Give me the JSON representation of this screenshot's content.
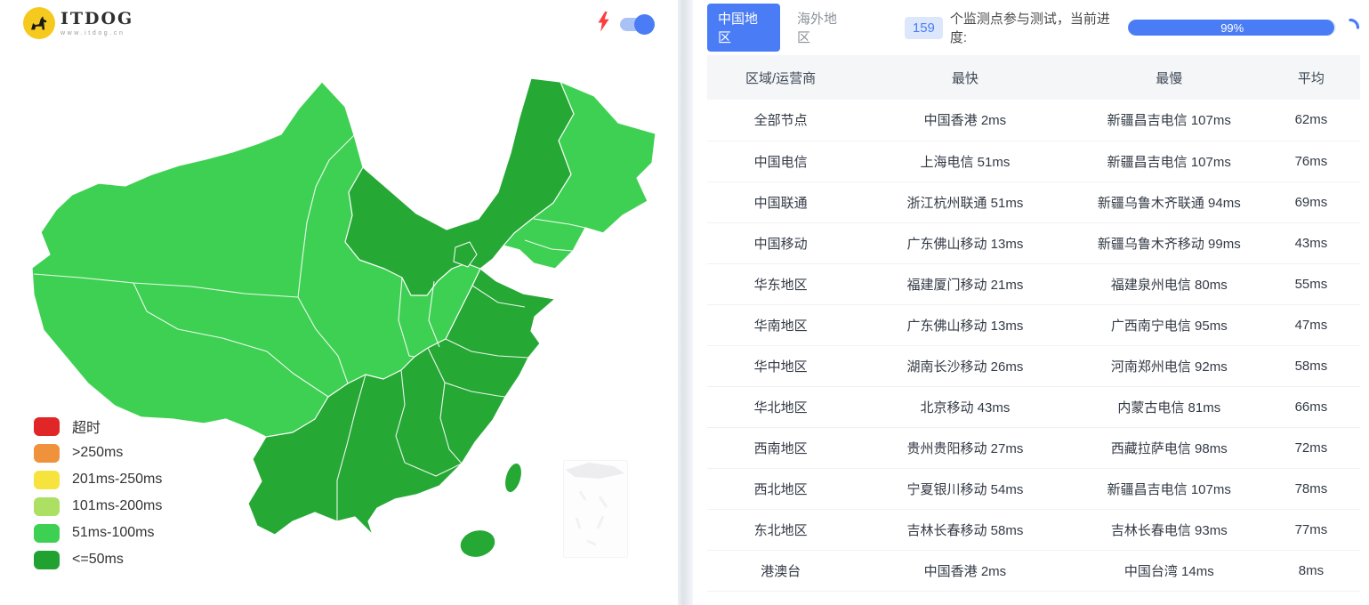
{
  "brand": {
    "name": "ITDOG",
    "subtitle": "www.itdog.cn"
  },
  "icons": {
    "logo": "dog-icon",
    "speed": "lightning-bolt-icon",
    "loading": "spinner-arc-icon"
  },
  "colors": {
    "accent_blue": "#4a7df5",
    "badge_bg": "#dde7fc",
    "map_normal_green": "#3ed052",
    "map_fast_green": "#26a835",
    "header_bg": "#f4f6f8"
  },
  "toolbar": {
    "speed_toggle_on": true
  },
  "tabs": [
    {
      "label": "中国地区",
      "active": true
    },
    {
      "label": "海外地区",
      "active": false
    }
  ],
  "status": {
    "count": "159",
    "text_after": "个监测点参与测试，当前进度:",
    "progress_label": "99%",
    "progress_percent": 99
  },
  "legend": {
    "items": [
      {
        "label": "超时",
        "color": "#e02626"
      },
      {
        "label": ">250ms",
        "color": "#f0923c"
      },
      {
        "label": "201ms-250ms",
        "color": "#f6e33d"
      },
      {
        "label": "101ms-200ms",
        "color": "#ace062"
      },
      {
        "label": "51ms-100ms",
        "color": "#3ed052"
      },
      {
        "label": "<=50ms",
        "color": "#21a12f"
      }
    ]
  },
  "table": {
    "headers": [
      "区域/运营商",
      "最快",
      "最慢",
      "平均"
    ],
    "rows": [
      [
        "全部节点",
        "中国香港 2ms",
        "新疆昌吉电信 107ms",
        "62ms"
      ],
      [
        "中国电信",
        "上海电信 51ms",
        "新疆昌吉电信 107ms",
        "76ms"
      ],
      [
        "中国联通",
        "浙江杭州联通 51ms",
        "新疆乌鲁木齐联通 94ms",
        "69ms"
      ],
      [
        "中国移动",
        "广东佛山移动 13ms",
        "新疆乌鲁木齐移动 99ms",
        "43ms"
      ],
      [
        "华东地区",
        "福建厦门移动 21ms",
        "福建泉州电信 80ms",
        "55ms"
      ],
      [
        "华南地区",
        "广东佛山移动 13ms",
        "广西南宁电信 95ms",
        "47ms"
      ],
      [
        "华中地区",
        "湖南长沙移动 26ms",
        "河南郑州电信 92ms",
        "58ms"
      ],
      [
        "华北地区",
        "北京移动 43ms",
        "内蒙古电信 81ms",
        "66ms"
      ],
      [
        "西南地区",
        "贵州贵阳移动 27ms",
        "西藏拉萨电信 98ms",
        "72ms"
      ],
      [
        "西北地区",
        "宁夏银川移动 54ms",
        "新疆昌吉电信 107ms",
        "78ms"
      ],
      [
        "东北地区",
        "吉林长春移动 58ms",
        "吉林长春电信 93ms",
        "77ms"
      ],
      [
        "港澳台",
        "中国香港 2ms",
        "中国台湾 14ms",
        "8ms"
      ]
    ]
  }
}
